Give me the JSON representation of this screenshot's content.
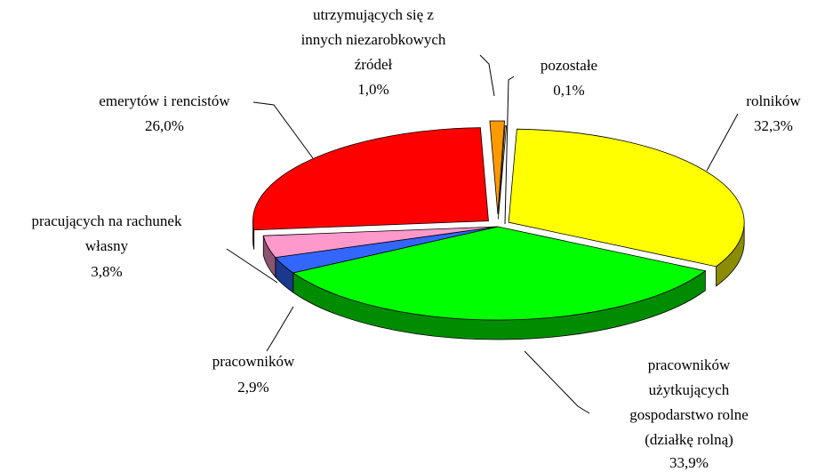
{
  "chart_data": {
    "type": "pie",
    "categories": [
      "rolników",
      "pracowników\nużytkujących\ngospodarstwo rolne\n(działkę rolną)",
      "pracowników",
      "pracujących na rachunek\nwłasny",
      "emerytów i rencistów",
      "utrzymujących się z\ninnych niezarobkowych\nźródeł",
      "pozostałe"
    ],
    "values": [
      32.3,
      33.9,
      2.9,
      3.8,
      26.0,
      1.0,
      0.1
    ],
    "value_labels": [
      "32,3%",
      "33,9%",
      "2,9%",
      "3,8%",
      "26,0%",
      "1,0%",
      "0,1%"
    ],
    "colors": [
      "#ffff00",
      "#00ff00",
      "#3366ff",
      "#ff99cc",
      "#ff0000",
      "#ff9900",
      "#ffcc66"
    ]
  }
}
